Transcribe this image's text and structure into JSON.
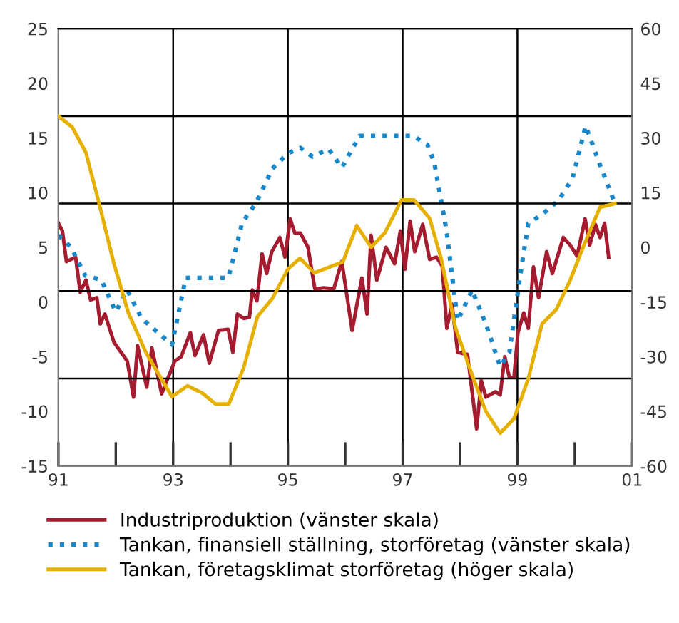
{
  "chart_data": {
    "type": "line",
    "xlim": [
      1991,
      2001
    ],
    "xticks": [
      {
        "value": 1991,
        "label": "91"
      },
      {
        "value": 1993,
        "label": "93"
      },
      {
        "value": 1995,
        "label": "95"
      },
      {
        "value": 1997,
        "label": "97"
      },
      {
        "value": 1999,
        "label": "99"
      },
      {
        "value": 2001,
        "label": "01"
      }
    ],
    "ylim": [
      -15,
      25
    ],
    "yticks": [
      -15,
      -10,
      -5,
      0,
      5,
      10,
      15,
      20,
      25
    ],
    "y2lim": [
      -60,
      60
    ],
    "y2ticks": [
      -60,
      -45,
      -30,
      -15,
      0,
      15,
      30,
      45,
      60
    ],
    "grid": false,
    "legend": "bottom",
    "ref_lines": [
      {
        "axis": "x",
        "value": 1993,
        "color": "#000000"
      },
      {
        "axis": "x",
        "value": 1995,
        "color": "#000000"
      },
      {
        "axis": "x",
        "value": 1997,
        "color": "#000000"
      },
      {
        "axis": "x",
        "value": 1999,
        "color": "#000000"
      },
      {
        "axis": "y2",
        "value": 36,
        "color": "#000000"
      },
      {
        "axis": "y2",
        "value": 12,
        "color": "#000000"
      },
      {
        "axis": "y2",
        "value": -12,
        "color": "#000000"
      },
      {
        "axis": "y2",
        "value": -36,
        "color": "#000000"
      }
    ],
    "series": [
      {
        "name": "Industriproduktion (vänster skala)",
        "color": "#a51c30",
        "line_style": "solid",
        "x": [
          1991.0,
          1991.07,
          1991.14,
          1991.3,
          1991.38,
          1991.48,
          1991.56,
          1991.67,
          1991.73,
          1991.81,
          1991.97,
          1992.2,
          1992.31,
          1992.38,
          1992.54,
          1992.63,
          1992.8,
          1992.89,
          1993.03,
          1993.14,
          1993.3,
          1993.38,
          1993.53,
          1993.63,
          1993.79,
          1993.96,
          1994.04,
          1994.12,
          1994.23,
          1994.33,
          1994.38,
          1994.46,
          1994.55,
          1994.63,
          1994.72,
          1994.86,
          1994.95,
          1995.04,
          1995.12,
          1995.22,
          1995.35,
          1995.47,
          1995.63,
          1995.8,
          1995.94,
          1996.12,
          1996.29,
          1996.38,
          1996.45,
          1996.55,
          1996.71,
          1996.86,
          1996.96,
          1997.04,
          1997.13,
          1997.21,
          1997.35,
          1997.47,
          1997.59,
          1997.69,
          1997.77,
          1997.86,
          1997.96,
          1998.13,
          1998.29,
          1998.37,
          1998.45,
          1998.62,
          1998.7,
          1998.78,
          1998.86,
          1998.94,
          1999.01,
          1999.11,
          1999.19,
          1999.28,
          1999.37,
          1999.51,
          1999.61,
          1999.8,
          1999.92,
          2000.04,
          2000.18,
          2000.26,
          2000.36,
          2000.44,
          2000.52,
          2000.59
        ],
        "values": [
          7.2,
          6.5,
          3.7,
          4.1,
          0.9,
          2.0,
          0.2,
          0.4,
          -2.0,
          -1.1,
          -3.7,
          -5.4,
          -8.7,
          -4.0,
          -7.8,
          -4.2,
          -8.4,
          -7.2,
          -5.4,
          -5.0,
          -2.8,
          -4.9,
          -3.0,
          -5.6,
          -2.6,
          -2.5,
          -4.6,
          -1.1,
          -1.5,
          -1.4,
          1.1,
          0.1,
          4.4,
          2.6,
          4.6,
          5.9,
          4.1,
          7.6,
          6.3,
          6.3,
          5.0,
          1.2,
          1.3,
          1.2,
          3.7,
          -2.6,
          2.2,
          -1.1,
          6.1,
          2.0,
          5.0,
          3.5,
          6.5,
          3.0,
          7.4,
          4.6,
          7.1,
          3.9,
          4.1,
          3.3,
          -2.4,
          -0.2,
          -4.6,
          -4.8,
          -11.6,
          -7.2,
          -8.7,
          -8.2,
          -8.5,
          -5.0,
          -6.9,
          -6.9,
          -2.8,
          -1.0,
          -2.4,
          3.2,
          0.4,
          4.6,
          2.6,
          5.9,
          5.2,
          4.2,
          7.6,
          5.2,
          7.1,
          5.9,
          7.2,
          4.1
        ]
      },
      {
        "name": "Tankan, finansiell ställning, storföretag (vänster skala)",
        "color": "#1a87c9",
        "line_style": "dotted",
        "x": [
          1991.0,
          1991.22,
          1991.47,
          1991.63,
          1991.75,
          1992.0,
          1992.2,
          1992.45,
          1992.69,
          1992.98,
          1993.22,
          1993.96,
          1994.08,
          1994.2,
          1994.45,
          1994.73,
          1995.0,
          1995.22,
          1995.43,
          1995.71,
          1995.94,
          1996.25,
          1996.61,
          1997.18,
          1997.43,
          1997.55,
          1997.76,
          1997.96,
          1998.21,
          1998.45,
          1998.7,
          1998.86,
          1999.06,
          1999.19,
          1999.43,
          1999.72,
          1999.96,
          2000.19,
          2000.45,
          2000.7
        ],
        "values": [
          6.1,
          5.0,
          2.4,
          2.2,
          2.0,
          -0.9,
          1.1,
          -1.5,
          -2.6,
          -3.9,
          2.2,
          2.2,
          4.6,
          7.2,
          9.1,
          12.2,
          13.6,
          14.1,
          13.3,
          14.0,
          12.3,
          15.2,
          15.2,
          15.2,
          14.4,
          12.8,
          6.7,
          -1.7,
          1.1,
          -2.0,
          -5.9,
          -4.6,
          2.8,
          7.2,
          8.0,
          9.3,
          11.3,
          16.1,
          12.4,
          9.0
        ]
      },
      {
        "name": "Tankan, företagsklimat storföretag (höger skala)",
        "color": "#e6b000",
        "line_style": "solid",
        "axis": "y2",
        "x": [
          1991.0,
          1991.24,
          1991.48,
          1991.71,
          1991.96,
          1992.22,
          1992.53,
          1992.98,
          1993.25,
          1993.51,
          1993.74,
          1993.97,
          1994.23,
          1994.47,
          1994.73,
          1995.0,
          1995.21,
          1995.46,
          1995.63,
          1995.96,
          1996.2,
          1996.45,
          1996.69,
          1996.98,
          1997.2,
          1997.47,
          1997.67,
          1997.92,
          1998.21,
          1998.45,
          1998.7,
          1998.94,
          1999.19,
          1999.43,
          1999.68,
          1999.92,
          2000.17,
          2000.44,
          2000.7
        ],
        "values": [
          36,
          33,
          26,
          12,
          -4,
          -18,
          -29,
          -41,
          -38,
          -40,
          -43,
          -43,
          -33,
          -19,
          -14,
          -6,
          -3,
          -7,
          -6,
          -4,
          6,
          0,
          4,
          13,
          13,
          8,
          -3,
          -22,
          -35,
          -45,
          -51,
          -47,
          -36,
          -21,
          -17,
          -9,
          1,
          11,
          12
        ]
      }
    ]
  }
}
